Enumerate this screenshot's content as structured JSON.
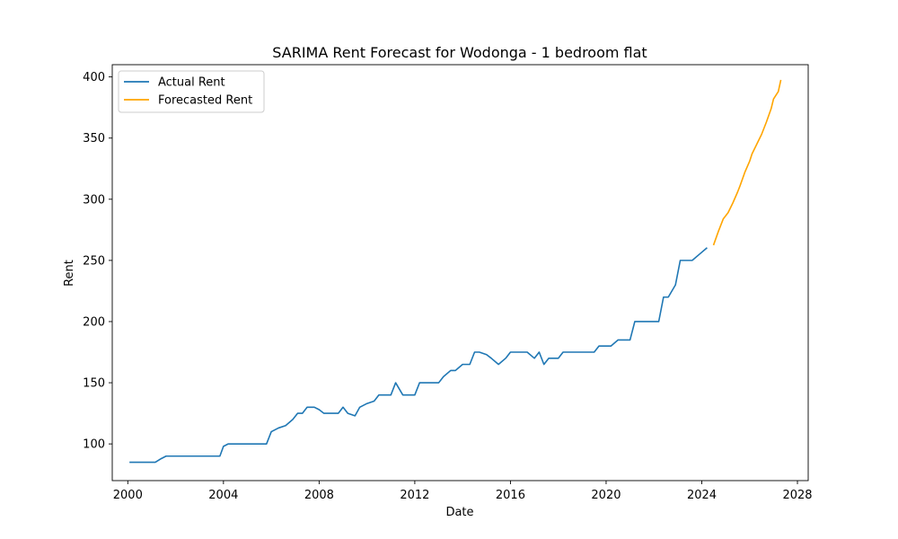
{
  "chart_data": {
    "type": "line",
    "title": "SARIMA Rent Forecast for Wodonga - 1 bedroom flat",
    "xlabel": "Date",
    "ylabel": "Rent",
    "xlim": [
      1999.35,
      2028.45
    ],
    "ylim": [
      70,
      410
    ],
    "x_ticks": [
      2000,
      2004,
      2008,
      2012,
      2016,
      2020,
      2024,
      2028
    ],
    "y_ticks": [
      100,
      150,
      200,
      250,
      300,
      350,
      400
    ],
    "grid": false,
    "legend_position": "top-left",
    "series": [
      {
        "name": "Actual Rent",
        "color": "#1f77b4",
        "x": [
          2000.1,
          2000.4,
          2000.7,
          2001.0,
          2001.15,
          2001.4,
          2001.6,
          2001.8,
          2002.1,
          2002.4,
          2002.7,
          2003.0,
          2003.3,
          2003.6,
          2003.85,
          2004.0,
          2004.2,
          2004.5,
          2004.8,
          2005.1,
          2005.4,
          2005.7,
          2005.8,
          2006.0,
          2006.3,
          2006.6,
          2006.9,
          2007.1,
          2007.3,
          2007.5,
          2007.8,
          2008.0,
          2008.2,
          2008.5,
          2008.8,
          2009.0,
          2009.2,
          2009.5,
          2009.7,
          2010.0,
          2010.3,
          2010.5,
          2010.8,
          2011.0,
          2011.2,
          2011.5,
          2011.8,
          2012.0,
          2012.2,
          2012.5,
          2012.8,
          2013.0,
          2013.2,
          2013.5,
          2013.7,
          2014.0,
          2014.3,
          2014.5,
          2014.7,
          2015.0,
          2015.2,
          2015.5,
          2015.8,
          2016.0,
          2016.3,
          2016.5,
          2016.7,
          2017.0,
          2017.2,
          2017.4,
          2017.6,
          2017.8,
          2018.0,
          2018.2,
          2018.5,
          2018.7,
          2019.0,
          2019.2,
          2019.5,
          2019.7,
          2020.0,
          2020.2,
          2020.5,
          2020.7,
          2021.0,
          2021.2,
          2021.5,
          2021.7,
          2022.0,
          2022.2,
          2022.4,
          2022.6,
          2022.9,
          2023.1,
          2023.3,
          2023.6,
          2023.9,
          2024.2
        ],
        "y": [
          85,
          85,
          85,
          85,
          85,
          88,
          90,
          90,
          90,
          90,
          90,
          90,
          90,
          90,
          90,
          98,
          100,
          100,
          100,
          100,
          100,
          100,
          100,
          110,
          113,
          115,
          120,
          125,
          125,
          130,
          130,
          128,
          125,
          125,
          125,
          130,
          125,
          123,
          130,
          133,
          135,
          140,
          140,
          140,
          150,
          140,
          140,
          140,
          150,
          150,
          150,
          150,
          155,
          160,
          160,
          165,
          165,
          175,
          175,
          173,
          170,
          165,
          170,
          175,
          175,
          175,
          175,
          170,
          175,
          165,
          170,
          170,
          170,
          175,
          175,
          175,
          175,
          175,
          175,
          180,
          180,
          180,
          185,
          185,
          185,
          200,
          200,
          200,
          200,
          200,
          220,
          220,
          230,
          250,
          250,
          250,
          255,
          260
        ]
      },
      {
        "name": "Forecasted Rent",
        "color": "#ffa500",
        "x": [
          2024.5,
          2024.7,
          2024.9,
          2025.1,
          2025.3,
          2025.5,
          2025.6,
          2025.8,
          2026.0,
          2026.1,
          2026.3,
          2026.5,
          2026.7,
          2026.9,
          2027.0,
          2027.2,
          2027.3
        ],
        "y": [
          263,
          274,
          284,
          289,
          297,
          306,
          311,
          322,
          331,
          337,
          345,
          353,
          363,
          374,
          382,
          388,
          397
        ]
      }
    ]
  }
}
